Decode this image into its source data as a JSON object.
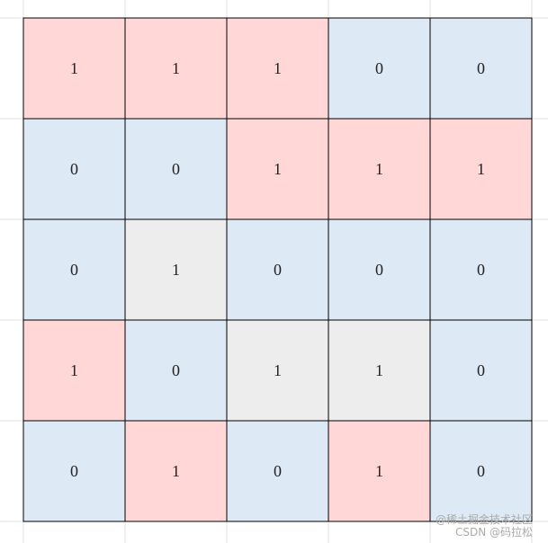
{
  "grid": {
    "rows": [
      [
        1,
        1,
        1,
        0,
        0
      ],
      [
        0,
        0,
        1,
        1,
        1
      ],
      [
        0,
        1,
        0,
        0,
        0
      ],
      [
        1,
        0,
        1,
        1,
        0
      ],
      [
        0,
        1,
        0,
        1,
        0
      ]
    ],
    "colors": [
      [
        "#ffd7d7",
        "#ffd7d7",
        "#ffd7d7",
        "#dde9f5",
        "#dde9f5"
      ],
      [
        "#dde9f5",
        "#dde9f5",
        "#ffd7d7",
        "#ffd7d7",
        "#ffd7d7"
      ],
      [
        "#dde9f5",
        "#ededed",
        "#dde9f5",
        "#dde9f5",
        "#dde9f5"
      ],
      [
        "#ffd7d7",
        "#dde9f5",
        "#ededed",
        "#ededed",
        "#dde9f5"
      ],
      [
        "#dde9f5",
        "#ffd7d7",
        "#dde9f5",
        "#ffd7d7",
        "#dde9f5"
      ]
    ]
  },
  "watermark": {
    "line1": "@稀土掘金技术社区",
    "line2": "CSDN @码拉松"
  }
}
